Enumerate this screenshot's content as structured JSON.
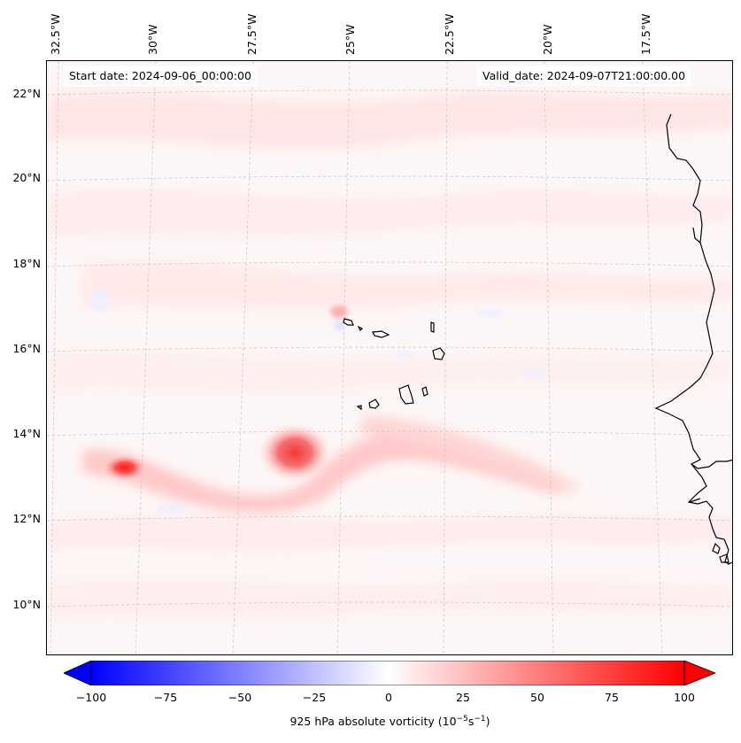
{
  "map": {
    "start_date_text": "Start date: 2024-09-06_00:00:00",
    "valid_date_text": "Valid_date: 2024-09-07T21:00:00.00",
    "longitude_labels": [
      "32.5°W",
      "30°W",
      "27.5°W",
      "25°W",
      "22.5°W",
      "20°W",
      "17.5°W"
    ],
    "latitude_labels": [
      "22°N",
      "20°N",
      "18°N",
      "16°N",
      "14°N",
      "12°N",
      "10°N"
    ],
    "field": "925 hPa absolute vorticity",
    "features": [
      "Cape Verde Islands",
      "West African coastline (Senegal, Gambia, Guinea-Bissau)"
    ]
  },
  "colorbar": {
    "label_text": "925 hPa absolute vorticity (10",
    "label_exp1": "−5",
    "label_mid": "s",
    "label_exp2": "−1",
    "label_end": ")",
    "ticks": [
      "−100",
      "−75",
      "−50",
      "−25",
      "0",
      "25",
      "50",
      "75",
      "100"
    ],
    "range": [
      -100,
      100
    ],
    "colormap": "bwr",
    "colors": {
      "min": "#0000ff",
      "mid": "#ffffff",
      "max": "#ff0000"
    }
  }
}
